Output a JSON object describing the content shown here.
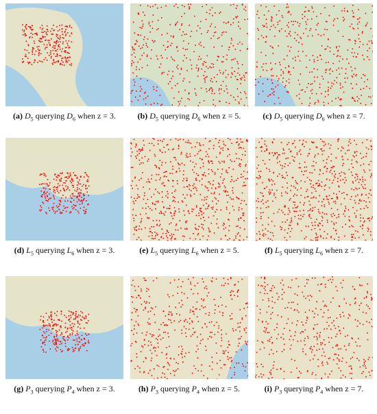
{
  "figure": {
    "panels": [
      {
        "label": "(a)",
        "query": "D",
        "query_sub": "5",
        "verb": "querying",
        "target": "D",
        "target_sub": "6",
        "condition": "when z = 3."
      },
      {
        "label": "(b)",
        "query": "D",
        "query_sub": "5",
        "verb": "querying",
        "target": "D",
        "target_sub": "6",
        "condition": "when z = 5."
      },
      {
        "label": "(c)",
        "query": "D",
        "query_sub": "5",
        "verb": "querying",
        "target": "D",
        "target_sub": "6",
        "condition": "when z = 7."
      },
      {
        "label": "(d)",
        "query": "L",
        "query_sub": "5",
        "verb": "querying",
        "target": "L",
        "target_sub": "6",
        "condition": "when z = 3."
      },
      {
        "label": "(e)",
        "query": "L",
        "query_sub": "5",
        "verb": "querying",
        "target": "L",
        "target_sub": "6",
        "condition": "when z = 5."
      },
      {
        "label": "(f)",
        "query": "L",
        "query_sub": "5",
        "verb": "querying",
        "target": "L",
        "target_sub": "6",
        "condition": "when z = 7."
      },
      {
        "label": "(g)",
        "query": "P",
        "query_sub": "3",
        "verb": "querying",
        "target": "P",
        "target_sub": "4",
        "condition": "when z = 3."
      },
      {
        "label": "(h)",
        "query": "P",
        "query_sub": "3",
        "verb": "querying",
        "target": "P",
        "target_sub": "4",
        "condition": "when z = 5."
      },
      {
        "label": "(i)",
        "query": "P",
        "query_sub": "3",
        "verb": "querying",
        "target": "P",
        "target_sub": "4",
        "condition": "when z = 7."
      }
    ]
  }
}
